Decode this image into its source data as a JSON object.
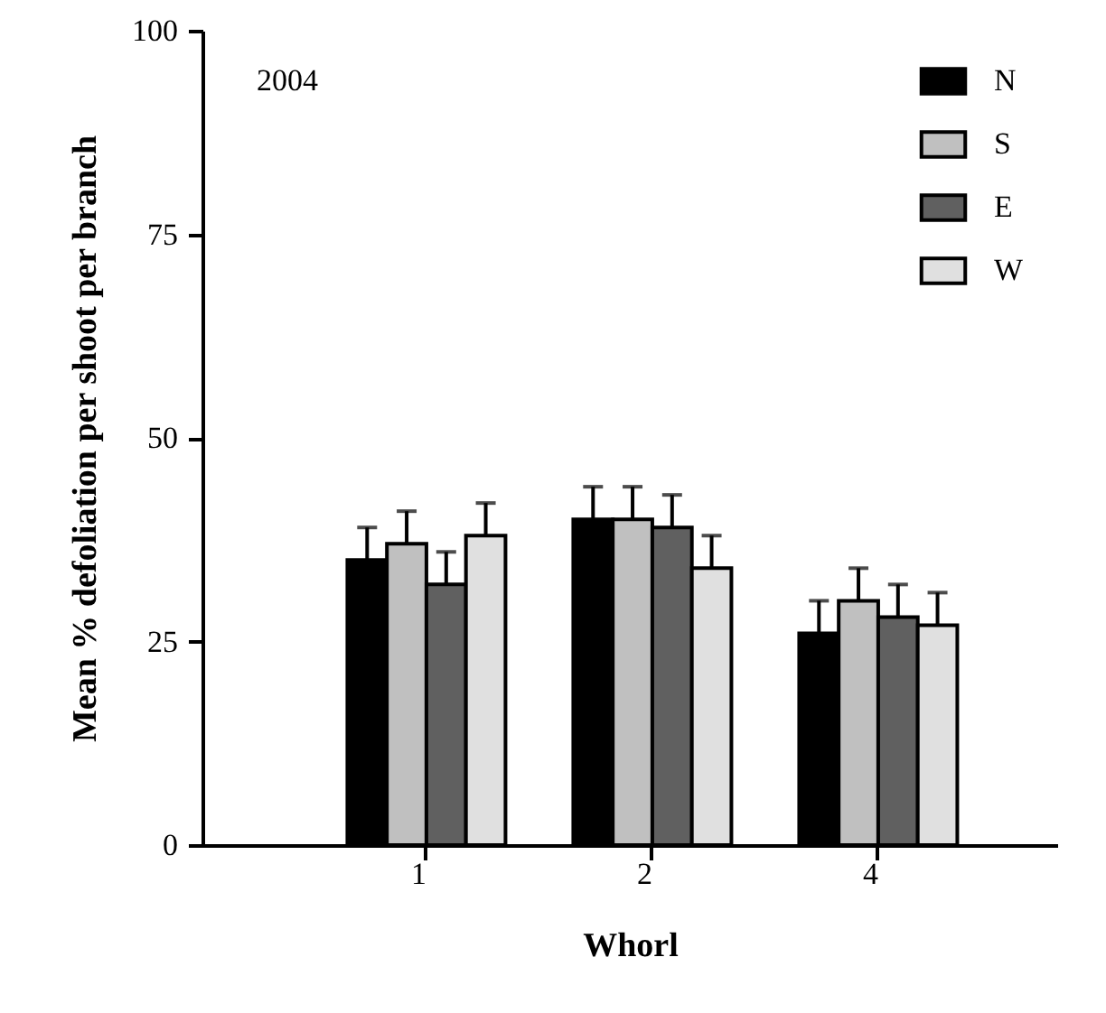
{
  "chart_data": {
    "type": "bar",
    "annotations": [
      "2004"
    ],
    "xlabel": "Whorl",
    "ylabel": "Mean % defoliation per shoot per branch",
    "categories": [
      "1",
      "2",
      "4"
    ],
    "ylim": [
      0,
      100
    ],
    "yticks": [
      0,
      25,
      50,
      75,
      100
    ],
    "legend": "top right",
    "series": [
      {
        "name": "N",
        "color": "#000000",
        "values": [
          35,
          40,
          26
        ],
        "errors": [
          4,
          4,
          4
        ]
      },
      {
        "name": "S",
        "color": "#c0c0c0",
        "values": [
          37,
          40,
          30
        ],
        "errors": [
          4,
          4,
          4
        ]
      },
      {
        "name": "E",
        "color": "#606060",
        "values": [
          32,
          39,
          28
        ],
        "errors": [
          4,
          4,
          4
        ]
      },
      {
        "name": "W",
        "color": "#e0e0e0",
        "values": [
          38,
          34,
          27
        ],
        "errors": [
          4,
          4,
          4
        ]
      }
    ]
  }
}
